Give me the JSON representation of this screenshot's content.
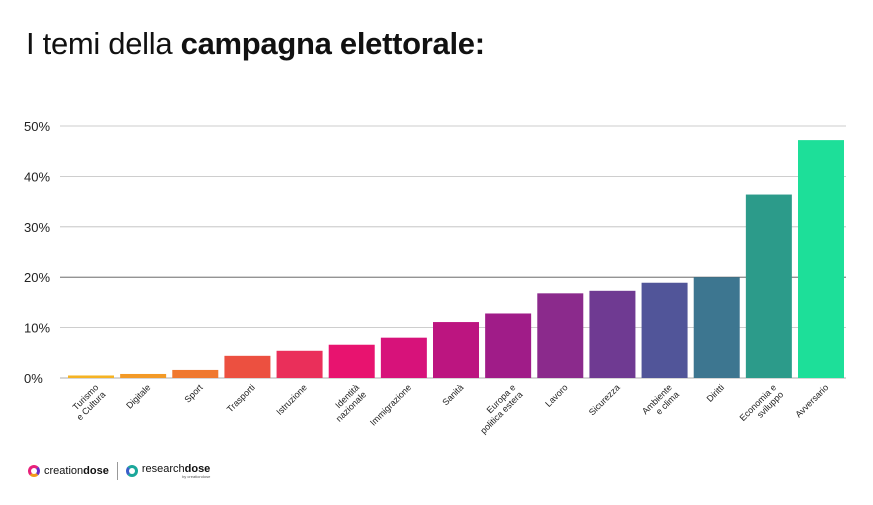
{
  "title": {
    "light": "I temi della ",
    "bold": "campagna elettorale:"
  },
  "chart_data": {
    "type": "bar",
    "categories": [
      "Turismo e Cultura",
      "Digitale",
      "Sport",
      "Trasporti",
      "Istruzione",
      "Identità nazionale",
      "Immigrazione",
      "Sanità",
      "Europa e politica estera",
      "Lavoro",
      "Sicurezza",
      "Ambiente e clima",
      "Diritti",
      "Economia e sviluppo",
      "Avversario"
    ],
    "category_lines": [
      [
        "Turismo",
        "e Cultura"
      ],
      [
        "Digitale"
      ],
      [
        "Sport"
      ],
      [
        "Trasporti"
      ],
      [
        "Istruzione"
      ],
      [
        "Identità",
        "nazionale"
      ],
      [
        "Immigrazione"
      ],
      [
        "Sanità"
      ],
      [
        "Europa e",
        "politica estera"
      ],
      [
        "Lavoro"
      ],
      [
        "Sicurezza"
      ],
      [
        "Ambiente",
        "e clima"
      ],
      [
        "Diritti"
      ],
      [
        "Economia e",
        "sviluppo"
      ],
      [
        "Avversario"
      ]
    ],
    "values": [
      0.5,
      0.8,
      1.6,
      4.4,
      5.4,
      6.6,
      8.0,
      11.1,
      12.8,
      16.8,
      17.3,
      18.9,
      20.0,
      36.4,
      47.2
    ],
    "colors": [
      "#f5b323",
      "#f39a27",
      "#f0782f",
      "#ec5040",
      "#ea2f5a",
      "#e8136f",
      "#d7127a",
      "#bc1580",
      "#a01c88",
      "#8b2a8c",
      "#6f3a92",
      "#515599",
      "#3d7690",
      "#2c9b8a",
      "#1ddf99"
    ],
    "ylim": [
      0,
      50
    ],
    "yticks": [
      0,
      10,
      20,
      30,
      40,
      50
    ],
    "ytick_labels": [
      "0%",
      "10%",
      "20%",
      "30%",
      "40%",
      "50%"
    ],
    "xlabel": "",
    "ylabel": "",
    "grid": true
  },
  "footer": {
    "brand1_a": "creation",
    "brand1_b": "dose",
    "brand2_a": "research",
    "brand2_b": "dose",
    "brand2_sub": "by creationdose"
  }
}
